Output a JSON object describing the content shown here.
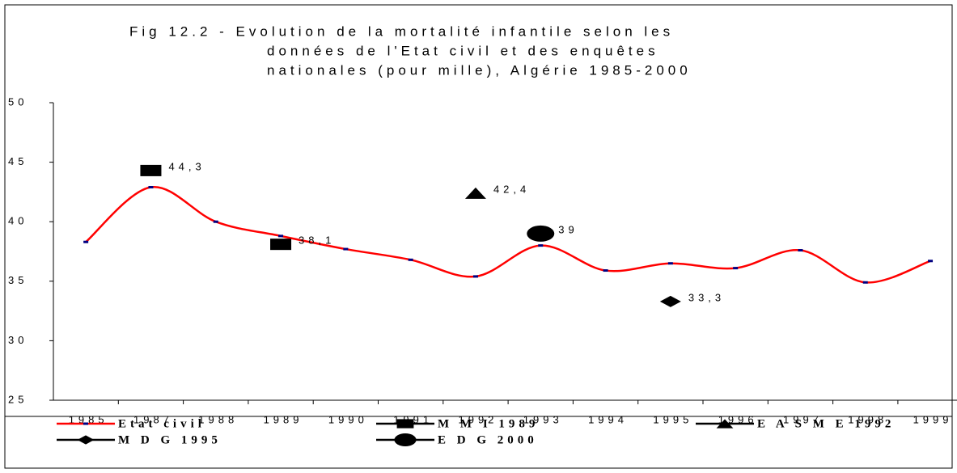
{
  "chart_data": {
    "type": "line",
    "title": [
      "Fig 12.2 - Evolution de la mortalité infantile selon les",
      "données de l'Etat civil et des enquêtes",
      "nationales (pour mille), Algérie 1985-2000"
    ],
    "categories": [
      "1985",
      "1987",
      "1988",
      "1989",
      "1990",
      "1991",
      "1992",
      "1993",
      "1994",
      "1995",
      "1996",
      "1997",
      "1998",
      "1999"
    ],
    "ylim": [
      25,
      50
    ],
    "yticks": [
      25,
      30,
      35,
      40,
      45,
      50
    ],
    "series": [
      {
        "name": "Etat civil",
        "color": "#ff0000",
        "marker": "dash",
        "marker_color": "#000080",
        "values": [
          38.3,
          42.9,
          40.0,
          38.8,
          37.7,
          36.8,
          35.4,
          38.0,
          35.9,
          36.5,
          36.1,
          37.6,
          34.9,
          36.7
        ]
      },
      {
        "name": "M M I 1989",
        "color": "#000000",
        "marker": "square",
        "values": [
          null,
          44.3,
          null,
          38.1,
          null,
          null,
          null,
          null,
          null,
          null,
          null,
          null,
          null,
          null
        ],
        "value_labels": [
          null,
          "44,3",
          null,
          "38,1",
          null,
          null,
          null,
          null,
          null,
          null,
          null,
          null,
          null,
          null
        ]
      },
      {
        "name": "E A S M E 1992",
        "color": "#000000",
        "marker": "triangle",
        "values": [
          null,
          null,
          null,
          null,
          null,
          null,
          42.4,
          null,
          null,
          null,
          null,
          null,
          null,
          null
        ],
        "value_labels": [
          null,
          null,
          null,
          null,
          null,
          null,
          "42,4",
          null,
          null,
          null,
          null,
          null,
          null,
          null
        ]
      },
      {
        "name": "M D G 1995",
        "color": "#000000",
        "marker": "diamond",
        "values": [
          null,
          null,
          null,
          null,
          null,
          null,
          null,
          null,
          null,
          33.3,
          null,
          null,
          null,
          null
        ],
        "value_labels": [
          null,
          null,
          null,
          null,
          null,
          null,
          null,
          null,
          null,
          "33,3",
          null,
          null,
          null,
          null
        ]
      },
      {
        "name": "E D G 2000",
        "color": "#000000",
        "marker": "circle",
        "values": [
          null,
          null,
          null,
          null,
          null,
          null,
          null,
          39,
          null,
          null,
          null,
          null,
          null,
          null
        ],
        "value_labels": [
          null,
          null,
          null,
          null,
          null,
          null,
          null,
          "39",
          null,
          null,
          null,
          null,
          null,
          null
        ]
      }
    ]
  }
}
